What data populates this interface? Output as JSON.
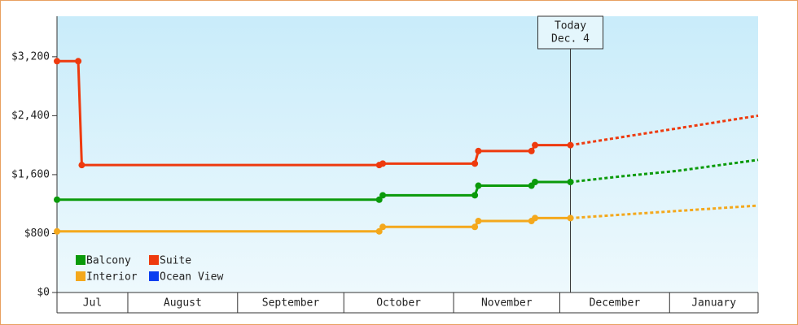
{
  "chart_data": {
    "type": "line",
    "xlim": [
      0,
      198
    ],
    "xticks": [
      0,
      20,
      51,
      81,
      112,
      142,
      173,
      198
    ],
    "categories": [
      "Jul",
      "August",
      "September",
      "October",
      "November",
      "December",
      "January"
    ],
    "ylim": [
      0,
      3750
    ],
    "yticks": [
      {
        "value": 0,
        "label": "$0"
      },
      {
        "value": 800,
        "label": "$800"
      },
      {
        "value": 1600,
        "label": "$1,600"
      },
      {
        "value": 2400,
        "label": "$2,400"
      },
      {
        "value": 3200,
        "label": "$3,200"
      }
    ],
    "today": {
      "value": 145,
      "label": [
        "Today",
        "Dec. 4"
      ]
    },
    "legend": "bottom-left",
    "series": [
      {
        "name": "Balcony",
        "color": "#0a9a0a",
        "x": [
          0,
          91,
          92,
          118,
          119,
          134,
          135,
          145,
          160,
          175,
          198
        ],
        "values": [
          1260,
          1260,
          1320,
          1320,
          1450,
          1450,
          1500,
          1500,
          1580,
          1650,
          1800
        ]
      },
      {
        "name": "Suite",
        "color": "#ee3a0e",
        "x": [
          0,
          6,
          7,
          91,
          92,
          118,
          119,
          134,
          135,
          145,
          198
        ],
        "values": [
          3140,
          3140,
          1730,
          1730,
          1750,
          1750,
          1920,
          1920,
          2000,
          2000,
          2400
        ]
      },
      {
        "name": "Interior",
        "color": "#f4a81c",
        "x": [
          0,
          91,
          92,
          118,
          119,
          134,
          135,
          145,
          198
        ],
        "values": [
          830,
          830,
          890,
          890,
          970,
          970,
          1010,
          1010,
          1180
        ]
      },
      {
        "name": "Ocean View",
        "color": "#0a3ef0",
        "x": [],
        "values": []
      }
    ]
  }
}
